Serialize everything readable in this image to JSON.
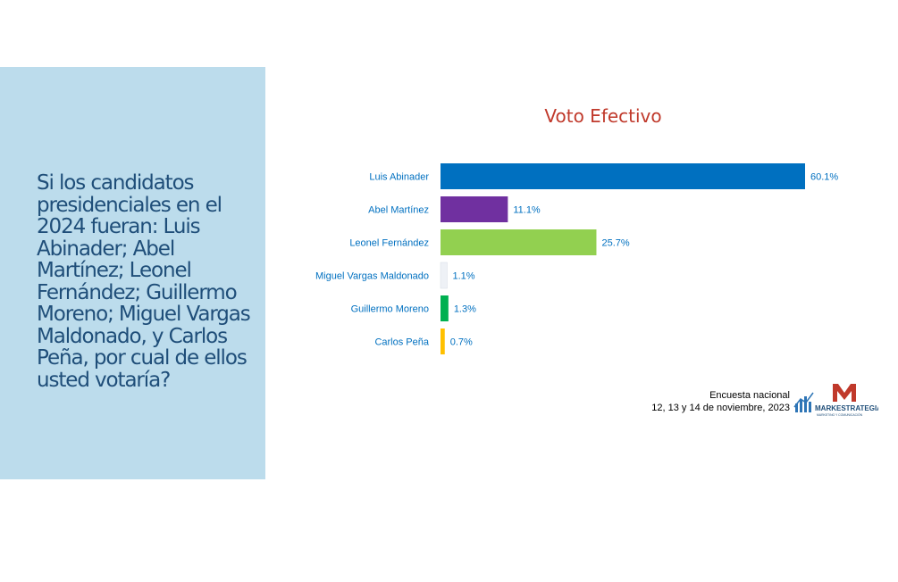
{
  "question": "Si los candidatos presidenciales en el 2024 fueran: Luis Abinader; Abel Martínez; Leonel Fernández; Guillermo Moreno; Miguel Vargas Maldonado, y Carlos Peña, por cual de ellos usted votaría?",
  "footer": {
    "line1": "Encuesta nacional",
    "line2": "12, 13 y 14 de noviembre, 2023"
  },
  "logo": {
    "name": "MARKESTRATEGIA",
    "tagline": "MARKETING Y COMUNICACIÓN"
  },
  "chart_data": {
    "type": "bar",
    "orientation": "horizontal",
    "title": "Voto Efectivo",
    "categories": [
      "Luis Abinader",
      "Abel Martínez",
      "Leonel Fernández",
      "Miguel Vargas Maldonado",
      "Guillermo Moreno",
      "Carlos Peña"
    ],
    "values": [
      60.1,
      11.1,
      25.7,
      1.1,
      1.3,
      0.7
    ],
    "value_labels": [
      "60.1%",
      "11.1%",
      "25.7%",
      "1.1%",
      "1.3%",
      "0.7%"
    ],
    "colors": [
      "#0070c0",
      "#7030a0",
      "#92d050",
      "#eef1f6",
      "#00b050",
      "#ffc000"
    ],
    "label_color": "#0070c0",
    "xlim": [
      0,
      60.1
    ],
    "grid": false,
    "legend": "none"
  }
}
